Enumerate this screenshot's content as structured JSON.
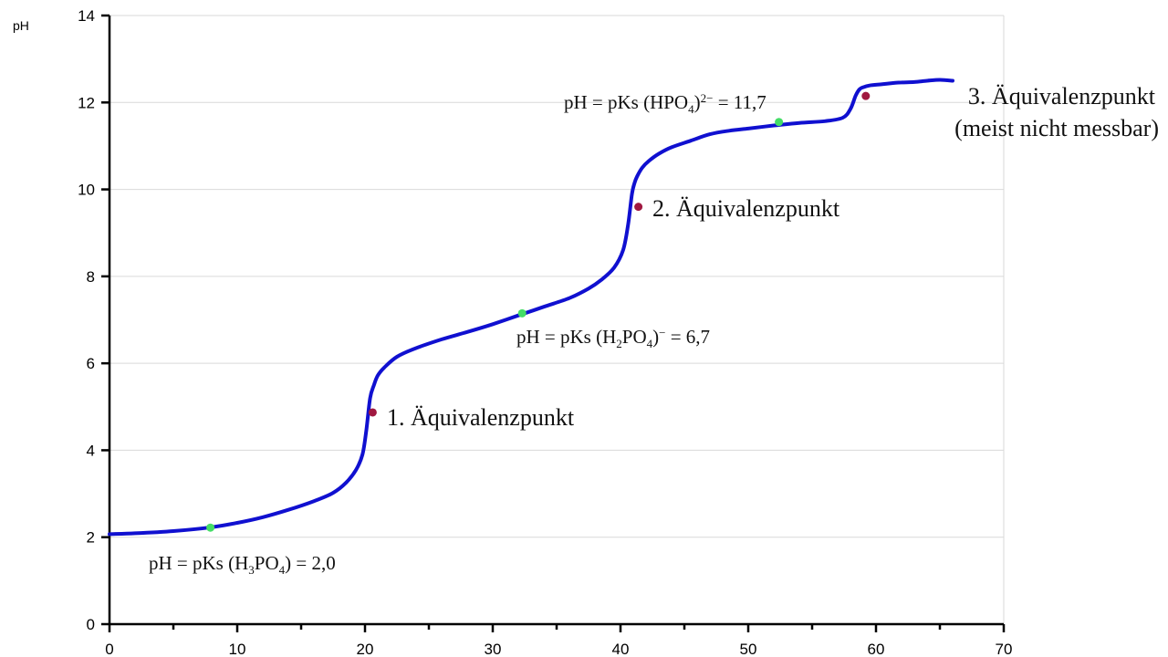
{
  "chart_data": {
    "type": "line",
    "title": "",
    "xlabel": "",
    "ylabel": "pH",
    "xlim": [
      0,
      70
    ],
    "ylim": [
      0,
      14
    ],
    "x_ticks": [
      0,
      10,
      20,
      30,
      40,
      50,
      60,
      70
    ],
    "y_ticks": [
      0,
      2,
      4,
      6,
      8,
      10,
      12,
      14
    ],
    "grid": "horizontal",
    "series": [
      {
        "color": "#1010d0",
        "x": [
          0,
          2,
          5,
          8,
          10,
          12,
          14,
          16,
          17.5,
          18.5,
          19.3,
          19.8,
          20.1,
          20.4,
          20.7,
          21.0,
          21.5,
          22.5,
          24,
          26,
          28,
          30,
          32,
          34,
          36,
          37.5,
          38.5,
          39.5,
          40.2,
          40.6,
          40.9,
          41.1,
          41.3,
          41.7,
          42.2,
          43,
          44,
          45.5,
          47,
          48.5,
          50,
          52,
          54,
          56,
          57.4,
          58.0,
          58.4,
          58.7,
          59.0,
          59.5,
          60.5,
          61.5,
          62,
          63,
          64,
          65,
          66
        ],
        "y": [
          2.07,
          2.09,
          2.14,
          2.23,
          2.33,
          2.46,
          2.63,
          2.83,
          3.02,
          3.25,
          3.55,
          3.9,
          4.45,
          5.2,
          5.5,
          5.72,
          5.9,
          6.15,
          6.35,
          6.55,
          6.72,
          6.9,
          7.1,
          7.3,
          7.5,
          7.72,
          7.92,
          8.2,
          8.6,
          9.2,
          9.9,
          10.15,
          10.3,
          10.5,
          10.65,
          10.82,
          10.97,
          11.12,
          11.27,
          11.35,
          11.4,
          11.47,
          11.53,
          11.57,
          11.65,
          11.85,
          12.15,
          12.3,
          12.35,
          12.39,
          12.42,
          12.45,
          12.46,
          12.47,
          12.5,
          12.52,
          12.5
        ]
      }
    ],
    "points": [
      {
        "x": 7.9,
        "y": 2.22,
        "color": "#44dd66"
      },
      {
        "x": 32.3,
        "y": 7.15,
        "color": "#44dd66"
      },
      {
        "x": 52.4,
        "y": 11.55,
        "color": "#44dd66"
      },
      {
        "x": 20.6,
        "y": 4.87,
        "color": "#a01840"
      },
      {
        "x": 41.4,
        "y": 9.6,
        "color": "#a01840"
      },
      {
        "x": 59.2,
        "y": 12.15,
        "color": "#a01840"
      }
    ],
    "annotations": {
      "pk1": {
        "main": "pH = pKs (H",
        "sub1": "3",
        "mid": "PO",
        "sub2": "4",
        "tail": ") = 2,0"
      },
      "pk2": {
        "main": "pH = pKs (H",
        "sub1": "2",
        "mid": "PO",
        "sub2": "4",
        "tail": ")",
        "sup": "−",
        "end": " = 6,7"
      },
      "pk3": {
        "main": "pH = pKs (HPO",
        "sub1": "4",
        "tail": ")",
        "sup": "2−",
        "end": " = 11,7"
      },
      "eq1": "1. Äquivalenzpunkt",
      "eq2": "2. Äquivalenzpunkt",
      "eq3_line1": "3. Äquivalenzpunkt",
      "eq3_line2": "(meist nicht messbar)"
    }
  }
}
